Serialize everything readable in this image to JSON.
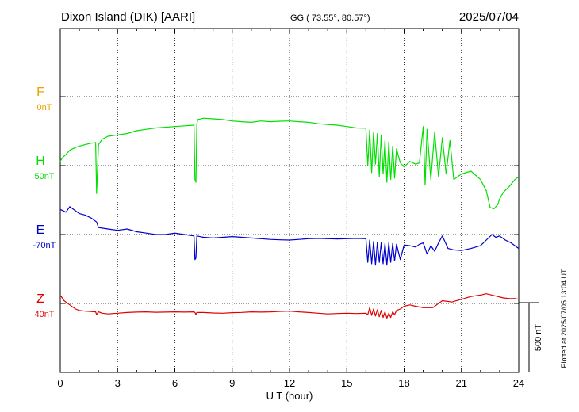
{
  "header": {
    "station": "Dixon Island (DIK)  [AARI]",
    "coords": "GG ( 73.55°,  80.57°)",
    "date": "2025/07/04"
  },
  "footer_note": "Plotted at 2025/07/05 13:04 UT",
  "chart_data": {
    "type": "line",
    "xlabel": "U T (hour)",
    "xlim": [
      0,
      24
    ],
    "xticks": [
      0,
      3,
      6,
      9,
      12,
      15,
      18,
      21,
      24
    ],
    "xtick_labels": [
      "0",
      "3",
      "6",
      "9",
      "12",
      "15",
      "18",
      "21",
      "24"
    ],
    "grid": true,
    "scale_bar": {
      "label": "500 nT",
      "value_nT": 500
    },
    "series": [
      {
        "name": "F",
        "baseline": "0nT",
        "color": "#f0a000",
        "values": []
      },
      {
        "name": "H",
        "baseline": "50nT",
        "color": "#00e000",
        "x": [
          0,
          0.1,
          0.3,
          0.5,
          0.8,
          1.0,
          1.3,
          1.6,
          1.85,
          1.9,
          2.0,
          2.2,
          2.5,
          3.0,
          3.5,
          4.0,
          4.5,
          5.0,
          5.5,
          6.0,
          6.5,
          7.0,
          7.05,
          7.1,
          7.15,
          7.2,
          7.5,
          8.0,
          8.5,
          9.0,
          9.5,
          10.0,
          10.5,
          11.0,
          11.5,
          12.0,
          12.5,
          13.0,
          13.5,
          14.0,
          14.5,
          15.0,
          15.5,
          16.0,
          16.1,
          16.2,
          16.3,
          16.4,
          16.5,
          16.6,
          16.7,
          16.8,
          16.9,
          17.0,
          17.1,
          17.2,
          17.3,
          17.4,
          17.5,
          17.6,
          17.8,
          18.0,
          18.3,
          18.6,
          18.8,
          19.0,
          19.1,
          19.2,
          19.4,
          19.6,
          19.8,
          20.0,
          20.2,
          20.4,
          20.6,
          21.0,
          21.5,
          22.0,
          22.3,
          22.5,
          22.7,
          22.9,
          23.0,
          23.2,
          23.5,
          23.8,
          24.0
        ],
        "values": [
          30,
          55,
          80,
          110,
          130,
          140,
          150,
          160,
          165,
          -200,
          150,
          190,
          210,
          220,
          230,
          250,
          260,
          270,
          275,
          280,
          285,
          290,
          -100,
          -120,
          300,
          330,
          340,
          335,
          330,
          320,
          315,
          310,
          320,
          315,
          318,
          320,
          315,
          310,
          300,
          295,
          290,
          280,
          270,
          268,
          0,
          255,
          -50,
          240,
          10,
          230,
          -80,
          220,
          -60,
          180,
          -120,
          170,
          -100,
          140,
          -90,
          120,
          20,
          -10,
          30,
          10,
          20,
          280,
          -140,
          260,
          -100,
          240,
          -80,
          200,
          -60,
          180,
          -100,
          -60,
          -40,
          -100,
          -180,
          -300,
          -310,
          -280,
          -240,
          -190,
          -150,
          -100,
          -80
        ]
      },
      {
        "name": "E",
        "baseline": "-70nT",
        "color": "#0000cc",
        "x": [
          0,
          0.3,
          0.5,
          0.8,
          1.0,
          1.3,
          1.6,
          1.9,
          2.0,
          2.5,
          3.0,
          3.5,
          4.0,
          4.5,
          5.0,
          5.5,
          6.0,
          6.5,
          7.0,
          7.05,
          7.1,
          7.15,
          7.5,
          8.0,
          8.5,
          9.0,
          9.5,
          10.0,
          10.5,
          11.0,
          11.5,
          12.0,
          12.5,
          13.0,
          13.5,
          14.0,
          14.5,
          15.0,
          15.5,
          16.0,
          16.1,
          16.2,
          16.3,
          16.4,
          16.5,
          16.6,
          16.7,
          16.8,
          16.9,
          17.0,
          17.1,
          17.2,
          17.3,
          17.4,
          17.5,
          17.6,
          17.8,
          18.0,
          18.3,
          18.6,
          18.8,
          19.0,
          19.2,
          19.4,
          19.6,
          19.8,
          20.0,
          20.3,
          20.6,
          21.0,
          21.5,
          22.0,
          22.3,
          22.6,
          22.8,
          23.0,
          23.3,
          23.6,
          24.0
        ],
        "values": [
          180,
          160,
          200,
          170,
          150,
          140,
          120,
          90,
          50,
          40,
          30,
          40,
          20,
          10,
          0,
          0,
          10,
          0,
          -10,
          -180,
          -170,
          -10,
          -20,
          -25,
          -20,
          -15,
          -20,
          -25,
          -30,
          -35,
          -38,
          -40,
          -35,
          -30,
          -28,
          -30,
          -32,
          -30,
          -28,
          -30,
          -200,
          -40,
          -210,
          -50,
          -220,
          -55,
          -200,
          -60,
          -210,
          -65,
          -220,
          -60,
          -200,
          -65,
          -190,
          -70,
          -180,
          -75,
          -80,
          -90,
          -70,
          -60,
          -140,
          -80,
          -120,
          -60,
          -10,
          -100,
          -110,
          -115,
          -100,
          -80,
          -40,
          0,
          -20,
          -10,
          -40,
          -60,
          -100
        ]
      },
      {
        "name": "Z",
        "baseline": "40nT",
        "color": "#e00000",
        "x": [
          0,
          0.2,
          0.5,
          0.8,
          1.0,
          1.3,
          1.6,
          1.85,
          1.9,
          2.0,
          2.2,
          2.5,
          3.0,
          3.5,
          4.0,
          4.5,
          5.0,
          5.5,
          6.0,
          6.5,
          7.0,
          7.05,
          7.1,
          7.15,
          7.5,
          8.0,
          8.5,
          9.0,
          9.5,
          10.0,
          10.5,
          11.0,
          11.5,
          12.0,
          12.5,
          13.0,
          13.5,
          14.0,
          14.5,
          15.0,
          15.5,
          16.0,
          16.1,
          16.2,
          16.3,
          16.4,
          16.5,
          16.6,
          16.7,
          16.8,
          16.9,
          17.0,
          17.1,
          17.2,
          17.3,
          17.4,
          17.5,
          17.6,
          17.8,
          18.0,
          18.3,
          18.6,
          19.0,
          19.5,
          20.0,
          20.5,
          21.0,
          21.5,
          22.0,
          22.3,
          22.6,
          22.9,
          23.2,
          23.5,
          23.8,
          24.0
        ],
        "values": [
          60,
          20,
          -10,
          -40,
          -50,
          -55,
          -58,
          -60,
          -80,
          -60,
          -70,
          -75,
          -70,
          -65,
          -62,
          -60,
          -63,
          -62,
          -60,
          -62,
          -60,
          -65,
          -80,
          -64,
          -65,
          -68,
          -70,
          -66,
          -64,
          -60,
          -62,
          -60,
          -57,
          -55,
          -60,
          -65,
          -70,
          -75,
          -72,
          -70,
          -72,
          -70,
          -80,
          -30,
          -85,
          -40,
          -90,
          -45,
          -95,
          -50,
          -100,
          -60,
          -105,
          -70,
          -100,
          -60,
          -80,
          -50,
          -40,
          -20,
          -10,
          -20,
          -30,
          -30,
          20,
          10,
          30,
          50,
          60,
          70,
          60,
          50,
          40,
          35,
          35,
          30
        ]
      }
    ]
  }
}
